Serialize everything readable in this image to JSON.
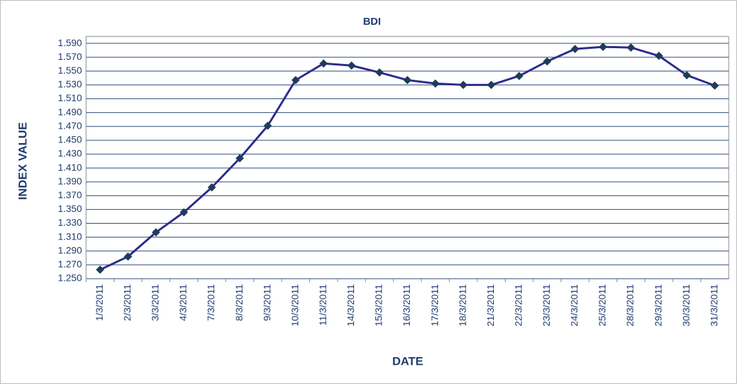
{
  "chart_data": {
    "type": "line",
    "title": "BDI",
    "x_label": "DATE",
    "y_label": "INDEX VALUE",
    "categories": [
      "1/3/2011",
      "2/3/2011",
      "3/3/2011",
      "4/3/2011",
      "7/3/2011",
      "8/3/2011",
      "9/3/2011",
      "10/3/2011",
      "11/3/2011",
      "14/3/2011",
      "15/3/2011",
      "16/3/2011",
      "17/3/2011",
      "18/3/2011",
      "21/3/2011",
      "22/3/2011",
      "23/3/2011",
      "24/3/2011",
      "25/3/2011",
      "28/3/2011",
      "29/3/2011",
      "30/3/2011",
      "31/3/2011"
    ],
    "values": [
      1263,
      1282,
      1317,
      1346,
      1382,
      1424,
      1471,
      1537,
      1561,
      1558,
      1548,
      1537,
      1532,
      1530,
      1530,
      1543,
      1564,
      1582,
      1585,
      1584,
      1572,
      1544,
      1529
    ],
    "color": "#2b2b8c",
    "marker_color": "#1f3b5a",
    "ylim": [
      1250,
      1600
    ],
    "yticks": [
      {
        "value": 1250,
        "label": "1.250"
      },
      {
        "value": 1270,
        "label": "1.270"
      },
      {
        "value": 1290,
        "label": "1.290"
      },
      {
        "value": 1310,
        "label": "1.310"
      },
      {
        "value": 1330,
        "label": "1.330"
      },
      {
        "value": 1350,
        "label": "1.350"
      },
      {
        "value": 1370,
        "label": "1.370"
      },
      {
        "value": 1390,
        "label": "1.390"
      },
      {
        "value": 1410,
        "label": "1.410"
      },
      {
        "value": 1430,
        "label": "1.430"
      },
      {
        "value": 1450,
        "label": "1.450"
      },
      {
        "value": 1470,
        "label": "1.470"
      },
      {
        "value": 1490,
        "label": "1.490"
      },
      {
        "value": 1510,
        "label": "1.510"
      },
      {
        "value": 1530,
        "label": "1.530"
      },
      {
        "value": 1550,
        "label": "1.550"
      },
      {
        "value": 1570,
        "label": "1.570"
      },
      {
        "value": 1590,
        "label": "1.590"
      }
    ],
    "grid": true
  }
}
